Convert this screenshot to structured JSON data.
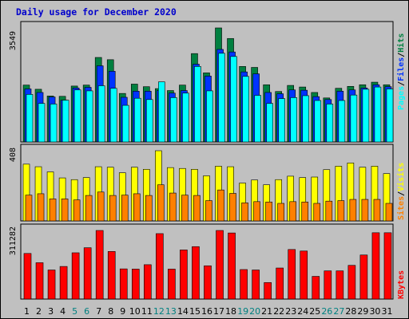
{
  "chart_data": {
    "type": "bar",
    "title": "Daily usage for December 2020",
    "categories": [
      "1",
      "2",
      "3",
      "4",
      "5",
      "6",
      "7",
      "8",
      "9",
      "10",
      "11",
      "12",
      "13",
      "14",
      "15",
      "16",
      "17",
      "18",
      "19",
      "20",
      "21",
      "22",
      "23",
      "24",
      "25",
      "26",
      "27",
      "28",
      "29",
      "30",
      "31"
    ],
    "weekend_days": [
      "5",
      "6",
      "12",
      "13",
      "19",
      "20",
      "26",
      "27"
    ],
    "panels": [
      {
        "name": "hits-files-pages",
        "ymax_label": "3549",
        "ymax": 3549,
        "legend": [
          "Pages",
          "/",
          "Files",
          "/",
          "Hits"
        ],
        "series": [
          {
            "name": "Hits",
            "color": "#008040",
            "values": [
              1770,
              1640,
              1430,
              1420,
              1740,
              1770,
              2630,
              2560,
              1510,
              1800,
              1720,
              1660,
              1600,
              1770,
              2750,
              2150,
              3549,
              3220,
              2350,
              2320,
              1780,
              1570,
              1760,
              1710,
              1540,
              1370,
              1670,
              1730,
              1780,
              1860,
              1780
            ]
          },
          {
            "name": "Files",
            "color": "#0033ff",
            "values": [
              1650,
              1540,
              1400,
              1300,
              1680,
              1700,
              2370,
              2200,
              1390,
              1580,
              1580,
              1600,
              1520,
              1600,
              2420,
              2050,
              2880,
              2800,
              2180,
              2120,
              1540,
              1500,
              1620,
              1610,
              1410,
              1320,
              1580,
              1620,
              1680,
              1780,
              1720
            ]
          },
          {
            "name": "Pages",
            "color": "#00ffff",
            "values": [
              1480,
              1200,
              1180,
              1300,
              1620,
              1590,
              1750,
              1670,
              1140,
              1360,
              1320,
              1870,
              1380,
              1520,
              2350,
              1590,
              2760,
              2660,
              2040,
              1450,
              1200,
              1350,
              1380,
              1440,
              1290,
              1180,
              1290,
              1460,
              1640,
              1710,
              1650
            ]
          }
        ]
      },
      {
        "name": "visits-sites",
        "ymax_label": "408",
        "ymax": 408,
        "legend": [
          "Sites",
          "/",
          "Visits"
        ],
        "series": [
          {
            "name": "Visits",
            "color": "#ffff00",
            "values": [
              330,
              315,
              285,
              250,
              240,
              252,
              315,
              312,
              280,
              312,
              300,
              408,
              310,
              305,
              300,
              262,
              318,
              315,
              220,
              238,
              210,
              240,
              260,
              252,
              255,
              298,
              318,
              337,
              312,
              318,
              275
            ]
          },
          {
            "name": "Sites",
            "color": "#ff8000",
            "values": [
              150,
              158,
              128,
              128,
              122,
              148,
              168,
              148,
              150,
              158,
              148,
              210,
              162,
              150,
              148,
              118,
              180,
              160,
              105,
              112,
              110,
              102,
              112,
              110,
              102,
              115,
              118,
              125,
              125,
              125,
              102
            ]
          }
        ]
      },
      {
        "name": "kbytes",
        "ymax_label": "311282",
        "ymax": 311282,
        "legend": [
          "KBytes"
        ],
        "series": [
          {
            "name": "KBytes",
            "color": "#ff0000",
            "values": [
              207000,
              165000,
              132000,
              148000,
              210000,
              233000,
              311282,
              216000,
              137000,
              136000,
              156000,
              297000,
              136000,
              223000,
              238000,
              151000,
              311282,
              300000,
              134000,
              132000,
              75000,
              141000,
              225000,
              218000,
              103000,
              128000,
              128000,
              153000,
              200000,
              301000,
              301000
            ]
          }
        ]
      }
    ],
    "colors": {
      "background": "#c0c0c0",
      "title": "#0000cc",
      "axis": "#000000",
      "weekday_label": "#000000",
      "weekend_label": "#008080",
      "legend_slash": "#000000"
    }
  }
}
